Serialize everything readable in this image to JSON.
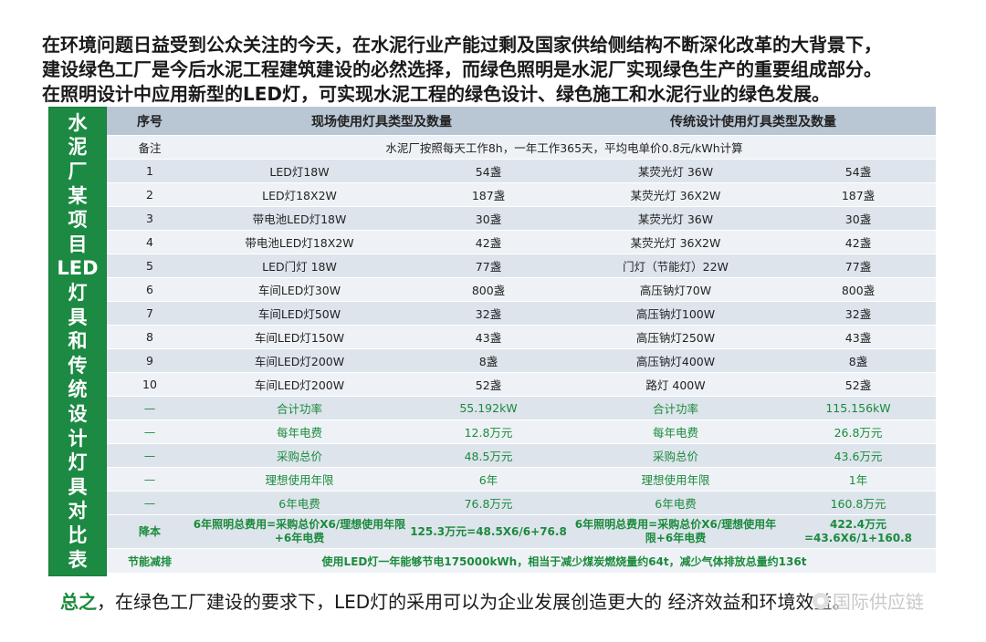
{
  "intro": [
    "在环境问题日益受到公众关注的今天，在水泥行业产能过剩及国家供给侧结构不断深化改革的大背景下，",
    "建设绿色工厂是今后水泥工程建筑建设的必然选择，而绿色照明是水泥厂实现绿色生产的重要组成部分。",
    "在照明设计中应用新型的LED灯，可实现水泥工程的绿色设计、绿色施工和水泥行业的绿色发展。"
  ],
  "sidebar_chars": [
    "水",
    "泥",
    "厂",
    "某",
    "项",
    "目",
    "LED",
    "灯",
    "具",
    "和",
    "传",
    "统",
    "设",
    "计",
    "灯",
    "具",
    "对",
    "比",
    "表"
  ],
  "table": {
    "headers": [
      "序号",
      "现场使用灯具类型及数量",
      "传统设计使用灯具类型及数量"
    ],
    "note_label": "备注",
    "note_text": "水泥厂按照每天工作8h，一年工作365天，平均电单价0.8元/kWh计算",
    "rows": [
      {
        "no": "1",
        "led": "LED灯18W",
        "led_qty": "54盏",
        "trad": "某荧光灯 36W",
        "trad_qty": "54盏"
      },
      {
        "no": "2",
        "led": "LED灯18X2W",
        "led_qty": "187盏",
        "trad": "某荧光灯 36X2W",
        "trad_qty": "187盏"
      },
      {
        "no": "3",
        "led": "带电池LED灯18W",
        "led_qty": "30盏",
        "trad": "某荧光灯 36W",
        "trad_qty": "30盏"
      },
      {
        "no": "4",
        "led": "带电池LED灯18X2W",
        "led_qty": "42盏",
        "trad": "某荧光灯 36X2W",
        "trad_qty": "42盏"
      },
      {
        "no": "5",
        "led": "LED门灯 18W",
        "led_qty": "77盏",
        "trad": "门灯（节能灯）22W",
        "trad_qty": "77盏"
      },
      {
        "no": "6",
        "led": "车间LED灯30W",
        "led_qty": "800盏",
        "trad": "高压钠灯70W",
        "trad_qty": "800盏"
      },
      {
        "no": "7",
        "led": "车间LED灯50W",
        "led_qty": "32盏",
        "trad": "高压钠灯100W",
        "trad_qty": "32盏"
      },
      {
        "no": "8",
        "led": "车间LED灯150W",
        "led_qty": "43盏",
        "trad": "高压钠灯250W",
        "trad_qty": "43盏"
      },
      {
        "no": "9",
        "led": "车间LED灯200W",
        "led_qty": "8盏",
        "trad": "高压钠灯400W",
        "trad_qty": "8盏"
      },
      {
        "no": "10",
        "led": "车间LED灯200W",
        "led_qty": "52盏",
        "trad": "路灯 400W",
        "trad_qty": "52盏"
      }
    ],
    "summary_rows": [
      {
        "no": "—",
        "led": "合计功率",
        "led_val": "55.192kW",
        "trad": "合计功率",
        "trad_val": "115.156kW"
      },
      {
        "no": "—",
        "led": "每年电费",
        "led_val": "12.8万元",
        "trad": "每年电费",
        "trad_val": "26.8万元"
      },
      {
        "no": "—",
        "led": "采购总价",
        "led_val": "48.5万元",
        "trad": "采购总价",
        "trad_val": "43.6万元"
      },
      {
        "no": "—",
        "led": "理想使用年限",
        "led_val": "6年",
        "trad": "理想使用年限",
        "trad_val": "1年"
      },
      {
        "no": "—",
        "led": "6年电费",
        "led_val": "76.8万元",
        "trad": "6年电费",
        "trad_val": "160.8万元"
      }
    ],
    "cost_row": {
      "label": "降本",
      "led_formula": "6年照明总费用=采购总价X6/理想使用年限+6年电费",
      "led_val": "125.3万元=48.5X6/6+76.8",
      "trad_formula": "6年照明总费用=采购总价X6/理想使用年限+6年电费",
      "trad_val": "422.4万元=43.6X6/1+160.8"
    },
    "saving_row": {
      "label": "节能减排",
      "text": "使用LED灯一年能够节电175000kWh，相当于减少煤炭燃烧量约64t，减少气体排放总量约136t"
    }
  },
  "summary": {
    "lead": "总之",
    "text": "，在绿色工厂建设的要求下，LED灯的采用可以为企业发展创造更大的 经济效益和环境效益。"
  },
  "watermark": "国际供应链",
  "colors": {
    "green": "#1b8a3c",
    "header_bg": "#b9c6d4",
    "band_bg": "#dde4ec",
    "light_bg": "#eef2f6"
  }
}
